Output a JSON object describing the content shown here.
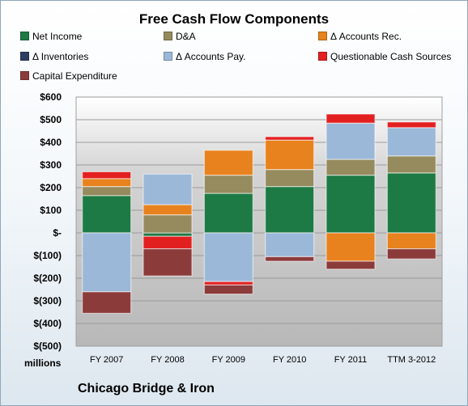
{
  "chart_data": {
    "type": "bar",
    "stacked": true,
    "title": "Free Cash Flow Components",
    "categories": [
      "FY 2007",
      "FY 2008",
      "FY 2009",
      "FY 2010",
      "FY 2011",
      "TTM 3-2012"
    ],
    "ylim": [
      -500,
      600
    ],
    "yticks": [
      600,
      500,
      400,
      300,
      200,
      100,
      0,
      -100,
      -200,
      -300,
      -400,
      -500
    ],
    "ytick_labels": [
      "$600",
      "$500",
      "$400",
      "$300",
      "$200",
      "$100",
      "$-",
      "$(100)",
      "$(200)",
      "$(300)",
      "$(400)",
      "$(500)"
    ],
    "ylabel": "millions",
    "grid": true,
    "legend_position": "top",
    "series": [
      {
        "name": "Net Income",
        "color": "#1e7a44",
        "values": [
          165,
          -15,
          175,
          205,
          255,
          265
        ]
      },
      {
        "name": "D&A",
        "color": "#958b5e",
        "values": [
          40,
          80,
          80,
          75,
          70,
          75
        ]
      },
      {
        "name": "Δ Accounts Rec.",
        "color": "#e8821e",
        "values": [
          35,
          45,
          110,
          130,
          -125,
          -70
        ]
      },
      {
        "name": "Δ Inventories",
        "color": "#2c3e63",
        "values": [
          0,
          0,
          0,
          0,
          0,
          0
        ]
      },
      {
        "name": "Δ Accounts Pay.",
        "color": "#9bb8d8",
        "values": [
          -260,
          135,
          -215,
          -105,
          160,
          125
        ]
      },
      {
        "name": "Questionable Cash Sources",
        "color": "#e32020",
        "values": [
          30,
          -55,
          -15,
          15,
          40,
          25
        ]
      },
      {
        "name": "Capital Expenditure",
        "color": "#8c3b3b",
        "values": [
          -95,
          -120,
          -40,
          -20,
          -35,
          -45
        ]
      }
    ]
  },
  "footer": {
    "units": "millions",
    "company": "Chicago Bridge & Iron"
  }
}
